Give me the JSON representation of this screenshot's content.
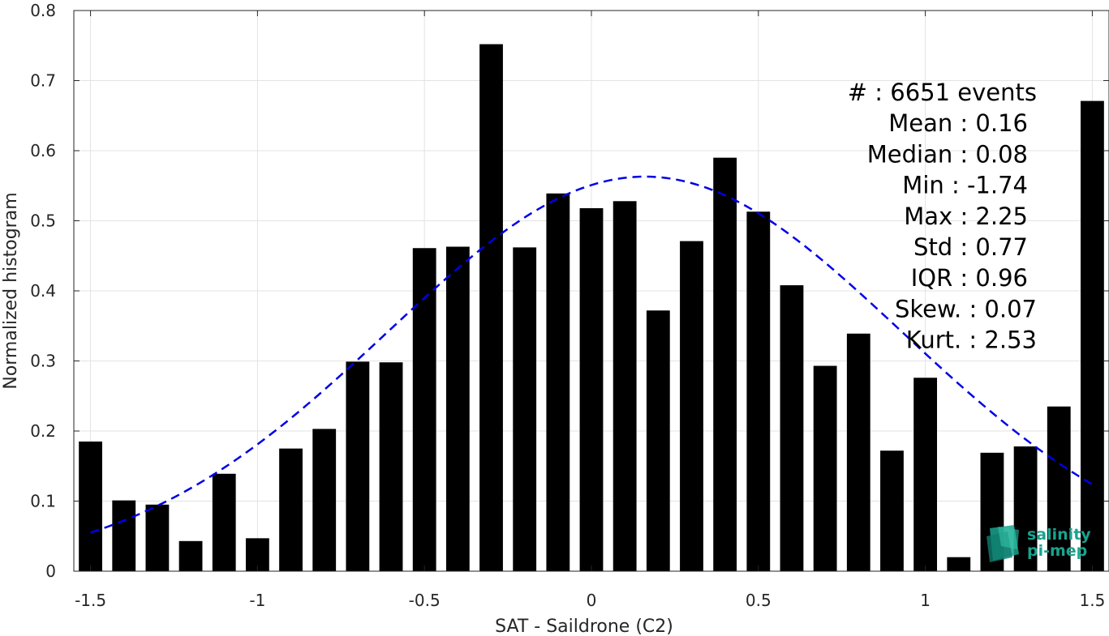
{
  "chart_data": {
    "type": "bar",
    "xlabel": "SAT - Saildrone (C2)",
    "ylabel": "Normalized histogram",
    "xlim": [
      -1.55,
      1.55
    ],
    "ylim": [
      0,
      0.8
    ],
    "xticks": [
      -1.5,
      -1,
      -0.5,
      0,
      0.5,
      1,
      1.5
    ],
    "xtick_labels": [
      "-1.5",
      "-1",
      "-0.5",
      "0",
      "0.5",
      "1",
      "1.5"
    ],
    "yticks": [
      0,
      0.1,
      0.2,
      0.3,
      0.4,
      0.5,
      0.6,
      0.7,
      0.8
    ],
    "ytick_labels": [
      "0",
      "0.1",
      "0.2",
      "0.3",
      "0.4",
      "0.5",
      "0.6",
      "0.7",
      "0.8"
    ],
    "grid": true,
    "bar_width": 0.07,
    "bar_color": "#000000",
    "x": [
      -1.5,
      -1.4,
      -1.3,
      -1.2,
      -1.1,
      -1.0,
      -0.9,
      -0.8,
      -0.7,
      -0.6,
      -0.5,
      -0.4,
      -0.3,
      -0.2,
      -0.1,
      0.0,
      0.1,
      0.2,
      0.3,
      0.4,
      0.5,
      0.6,
      0.7,
      0.8,
      0.9,
      1.0,
      1.1,
      1.2,
      1.3,
      1.4,
      1.5
    ],
    "values": [
      0.185,
      0.101,
      0.095,
      0.043,
      0.139,
      0.047,
      0.175,
      0.203,
      0.299,
      0.298,
      0.461,
      0.463,
      0.752,
      0.462,
      0.539,
      0.518,
      0.528,
      0.372,
      0.471,
      0.59,
      0.513,
      0.408,
      0.293,
      0.339,
      0.172,
      0.276,
      0.02,
      0.169,
      0.178,
      0.235,
      0.671
    ],
    "fit_curve": {
      "style": "dashed",
      "color": "#0000e6",
      "mean": 0.16,
      "std": 0.77,
      "peak": 0.563,
      "x_range": [
        -1.5,
        1.5
      ]
    },
    "stats": [
      "#  : 6651 events",
      "Mean : 0.16",
      "Median : 0.08",
      "Min : -1.74",
      "Max : 2.25",
      "Std : 0.77",
      "IQR : 0.96",
      "Skew. : 0.07",
      "Kurt. : 2.53"
    ],
    "logo": {
      "line1": "salinity",
      "line2": "pi-mep",
      "color": "#1aa38f"
    }
  }
}
